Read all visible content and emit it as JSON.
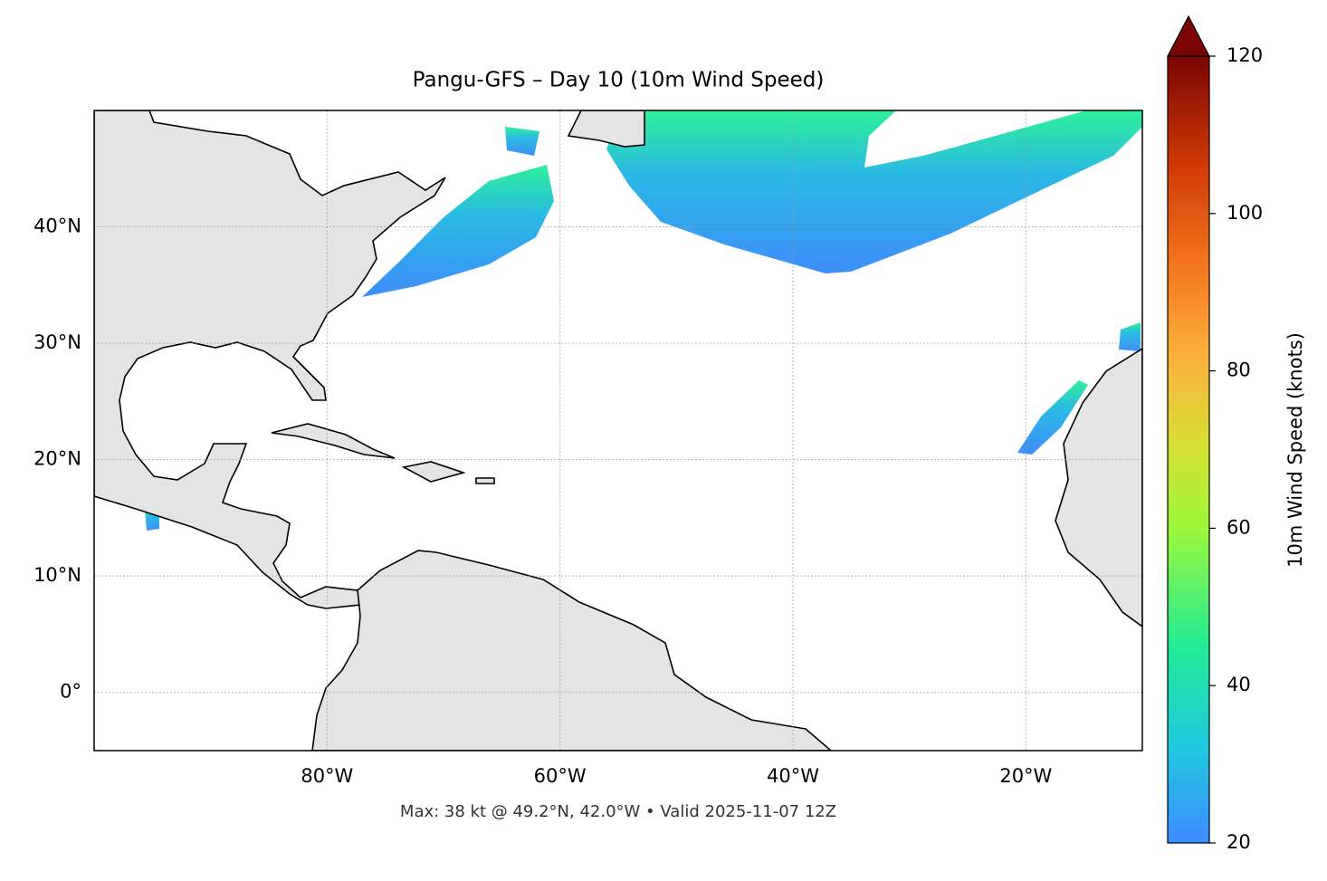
{
  "chart_data": {
    "type": "map",
    "title": "Pangu-GFS – Day 10 (10m Wind Speed)",
    "footnote": "Max: 38 kt @ 49.2°N, 42.0°W • Valid 2025-11-07 12Z",
    "xlim": [
      -100,
      -10
    ],
    "ylim": [
      -5,
      50
    ],
    "xticks": [
      {
        "value": -80,
        "label": "80°W"
      },
      {
        "value": -60,
        "label": "60°W"
      },
      {
        "value": -40,
        "label": "40°W"
      },
      {
        "value": -20,
        "label": "20°W"
      }
    ],
    "yticks": [
      {
        "value": 0,
        "label": "0°"
      },
      {
        "value": 10,
        "label": "10°N"
      },
      {
        "value": 20,
        "label": "20°N"
      },
      {
        "value": 30,
        "label": "30°N"
      },
      {
        "value": 40,
        "label": "40°N"
      }
    ],
    "grid": true,
    "colorbar": {
      "label": "10m Wind Speed (knots)",
      "lim": [
        20,
        120
      ],
      "ticks": [
        20,
        40,
        60,
        80,
        100,
        120
      ]
    }
  }
}
